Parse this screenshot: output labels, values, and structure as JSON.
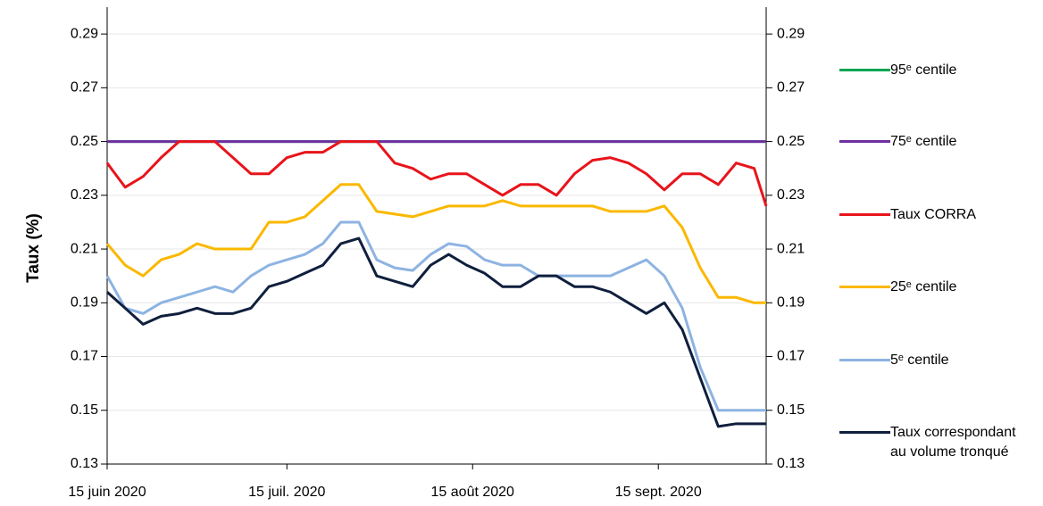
{
  "chart_data": {
    "type": "line",
    "ylabel": "Taux (%)",
    "x": [
      "2020-06-15",
      "2020-06-18",
      "2020-06-21",
      "2020-06-24",
      "2020-06-27",
      "2020-06-30",
      "2020-07-03",
      "2020-07-06",
      "2020-07-09",
      "2020-07-12",
      "2020-07-15",
      "2020-07-18",
      "2020-07-21",
      "2020-07-24",
      "2020-07-27",
      "2020-07-30",
      "2020-08-02",
      "2020-08-05",
      "2020-08-08",
      "2020-08-11",
      "2020-08-14",
      "2020-08-17",
      "2020-08-20",
      "2020-08-23",
      "2020-08-26",
      "2020-08-29",
      "2020-09-01",
      "2020-09-04",
      "2020-09-07",
      "2020-09-10",
      "2020-09-13",
      "2020-09-16",
      "2020-09-19",
      "2020-09-22",
      "2020-09-25",
      "2020-09-28",
      "2020-10-01",
      "2020-10-03"
    ],
    "xlim": [
      "2020-06-15",
      "2020-10-03"
    ],
    "xticks": [
      {
        "value": "2020-06-15",
        "label": "15 juin 2020"
      },
      {
        "value": "2020-07-15",
        "label": "15 juil. 2020"
      },
      {
        "value": "2020-08-15",
        "label": "15 août 2020"
      },
      {
        "value": "2020-09-15",
        "label": "15 sept. 2020"
      }
    ],
    "ylim": [
      0.13,
      0.3
    ],
    "yticks": [
      0.13,
      0.15,
      0.17,
      0.19,
      0.21,
      0.23,
      0.25,
      0.27,
      0.29
    ],
    "y2lim": [
      0.13,
      0.3
    ],
    "y2ticks": [
      0.13,
      0.15,
      0.17,
      0.19,
      0.21,
      0.23,
      0.25,
      0.27,
      0.29
    ],
    "grid": true,
    "legend": "right",
    "series": [
      {
        "name": "95ᵉ centile",
        "color": "#00a651",
        "values": [
          0.25,
          0.25,
          0.25,
          0.25,
          0.25,
          0.25,
          0.25,
          0.25,
          0.25,
          0.25,
          0.25,
          0.25,
          0.25,
          0.25,
          0.25,
          0.25,
          0.25,
          0.25,
          0.25,
          0.25,
          0.25,
          0.25,
          0.25,
          0.25,
          0.25,
          0.25,
          0.25,
          0.25,
          0.25,
          0.25,
          0.25,
          0.25,
          0.25,
          0.25,
          0.25,
          0.25,
          0.25,
          0.25
        ]
      },
      {
        "name": "75ᵉ centile",
        "color": "#7030a0",
        "values": [
          0.25,
          0.25,
          0.25,
          0.25,
          0.25,
          0.25,
          0.25,
          0.25,
          0.25,
          0.25,
          0.25,
          0.25,
          0.25,
          0.25,
          0.25,
          0.25,
          0.25,
          0.25,
          0.25,
          0.25,
          0.25,
          0.25,
          0.25,
          0.25,
          0.25,
          0.25,
          0.25,
          0.25,
          0.25,
          0.25,
          0.25,
          0.25,
          0.25,
          0.25,
          0.25,
          0.25,
          0.25,
          0.25
        ]
      },
      {
        "name": "Taux CORRA",
        "color": "#e8141b",
        "values": [
          0.242,
          0.233,
          0.237,
          0.244,
          0.25,
          0.25,
          0.25,
          0.244,
          0.238,
          0.238,
          0.244,
          0.246,
          0.246,
          0.25,
          0.25,
          0.25,
          0.242,
          0.24,
          0.236,
          0.238,
          0.238,
          0.234,
          0.23,
          0.234,
          0.234,
          0.23,
          0.238,
          0.243,
          0.244,
          0.242,
          0.238,
          0.232,
          0.238,
          0.238,
          0.234,
          0.242,
          0.24,
          0.226
        ]
      },
      {
        "name": "25ᵉ centile",
        "color": "#fbb800",
        "values": [
          0.212,
          0.204,
          0.2,
          0.206,
          0.208,
          0.212,
          0.21,
          0.21,
          0.21,
          0.22,
          0.22,
          0.222,
          0.228,
          0.234,
          0.234,
          0.224,
          0.223,
          0.222,
          0.224,
          0.226,
          0.226,
          0.226,
          0.228,
          0.226,
          0.226,
          0.226,
          0.226,
          0.226,
          0.224,
          0.224,
          0.224,
          0.226,
          0.218,
          0.203,
          0.192,
          0.192,
          0.19,
          0.19
        ]
      },
      {
        "name": "5ᵉ centile",
        "color": "#8db3e2",
        "values": [
          0.2,
          0.188,
          0.186,
          0.19,
          0.192,
          0.194,
          0.196,
          0.194,
          0.2,
          0.204,
          0.206,
          0.208,
          0.212,
          0.22,
          0.22,
          0.206,
          0.203,
          0.202,
          0.208,
          0.212,
          0.211,
          0.206,
          0.204,
          0.204,
          0.2,
          0.2,
          0.2,
          0.2,
          0.2,
          0.203,
          0.206,
          0.2,
          0.188,
          0.166,
          0.15,
          0.15,
          0.15,
          0.15
        ]
      },
      {
        "name": "Taux correspondant au volume tronqué",
        "color": "#0f1f3d",
        "values": [
          0.194,
          0.188,
          0.182,
          0.185,
          0.186,
          0.188,
          0.186,
          0.186,
          0.188,
          0.196,
          0.198,
          0.201,
          0.204,
          0.212,
          0.214,
          0.2,
          0.198,
          0.196,
          0.204,
          0.208,
          0.204,
          0.201,
          0.196,
          0.196,
          0.2,
          0.2,
          0.196,
          0.196,
          0.194,
          0.19,
          0.186,
          0.19,
          0.18,
          0.162,
          0.144,
          0.145,
          0.145,
          0.145
        ]
      }
    ]
  }
}
